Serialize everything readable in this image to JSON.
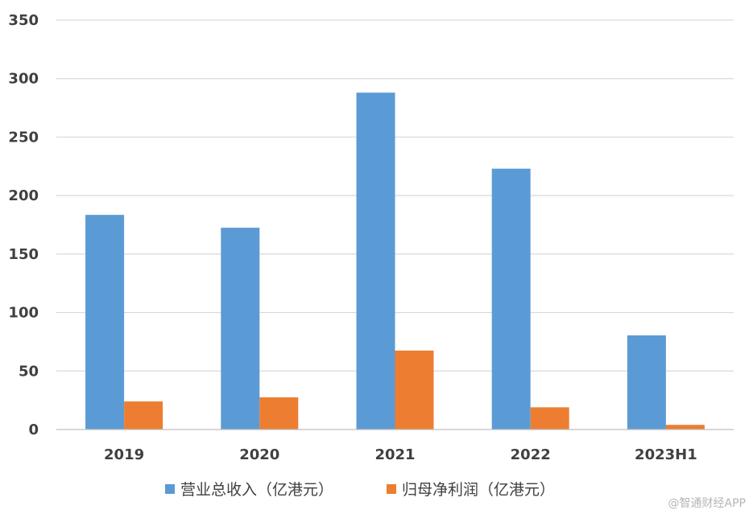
{
  "chart_data": {
    "type": "bar",
    "categories": [
      "2019",
      "2020",
      "2021",
      "2022",
      "2023H1"
    ],
    "series": [
      {
        "name": "营业总收入（亿港元）",
        "color": "#5b9bd5",
        "values": [
          183.5,
          172.5,
          288,
          223,
          80.5
        ]
      },
      {
        "name": "归母净利润（亿港元）",
        "color": "#ed7d31",
        "values": [
          24,
          27.5,
          67.5,
          19,
          4
        ]
      }
    ],
    "title": "",
    "xlabel": "",
    "ylabel": "",
    "ylim": [
      0,
      350
    ],
    "yticks": [
      0,
      50,
      100,
      150,
      200,
      250,
      300,
      350
    ],
    "grid": true,
    "legend": "bottom-center"
  },
  "watermark": "@智通财经APP"
}
